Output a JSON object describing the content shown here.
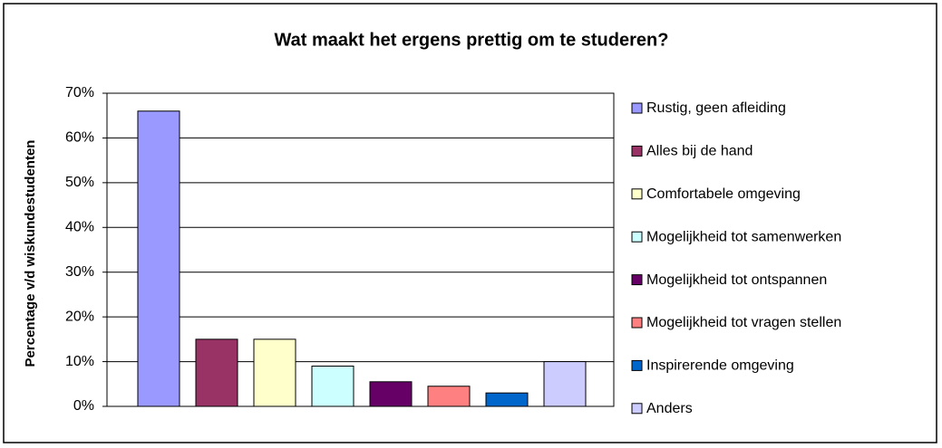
{
  "chart_data": {
    "type": "bar",
    "title": "Wat maakt het ergens prettig om te studeren?",
    "y_label": "Percentage v/d wiskundestudenten",
    "categories": [
      "Rustig, geen afleiding",
      "Alles bij de hand",
      "Comfortabele omgeving",
      "Mogelijkheid tot samenwerken",
      "Mogelijkheid tot ontspannen",
      "Mogelijkheid tot vragen stellen",
      "Inspirerende omgeving",
      "Anders"
    ],
    "values": [
      66,
      15,
      15,
      9,
      5.5,
      4.5,
      3,
      10
    ],
    "colors": [
      "#9999ff",
      "#993366",
      "#ffffcc",
      "#ccffff",
      "#660066",
      "#ff8080",
      "#0066cc",
      "#ccccff"
    ],
    "ylim": [
      0,
      70
    ],
    "yticks": [
      {
        "value": 0,
        "label": "0%"
      },
      {
        "value": 10,
        "label": "10%"
      },
      {
        "value": 20,
        "label": "20%"
      },
      {
        "value": 30,
        "label": "30%"
      },
      {
        "value": 40,
        "label": "40%"
      },
      {
        "value": 50,
        "label": "50%"
      },
      {
        "value": 60,
        "label": "60%"
      },
      {
        "value": 70,
        "label": "70%"
      }
    ],
    "grid": true,
    "legend": "right"
  }
}
